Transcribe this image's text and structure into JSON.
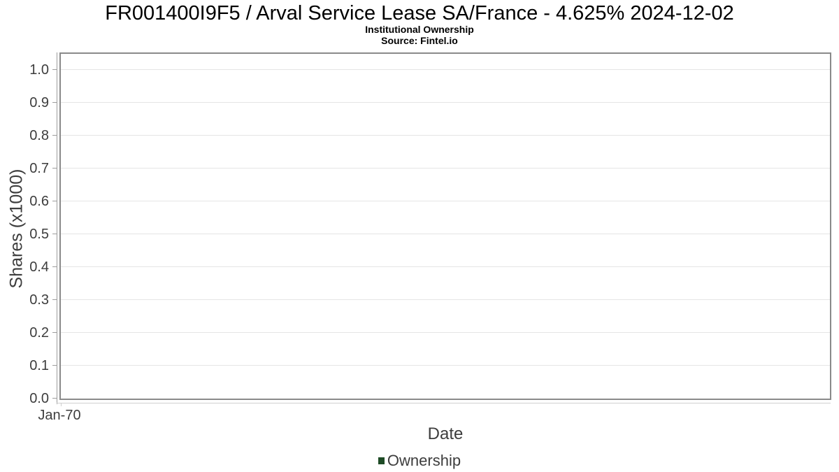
{
  "header": {
    "title": "FR001400I9F5 / Arval Service Lease SA/France - 4.625% 2024-12-02",
    "subtitle": "Institutional Ownership",
    "source": "Source: Fintel.io"
  },
  "chart_data": {
    "type": "line",
    "title": "FR001400I9F5 / Arval Service Lease SA/France - 4.625% 2024-12-02",
    "subtitle": "Institutional Ownership",
    "source": "Source: Fintel.io",
    "xlabel": "Date",
    "ylabel": "Shares (x1000)",
    "ylim": [
      0.0,
      1.05
    ],
    "yticks": [
      0.0,
      0.1,
      0.2,
      0.3,
      0.4,
      0.5,
      0.6,
      0.7,
      0.8,
      0.9,
      1.0
    ],
    "xticks": [
      "Jan-70"
    ],
    "grid": "horizontal-only",
    "legend_position": "bottom-center",
    "series": [
      {
        "name": "Ownership",
        "color": "#1e4b26",
        "x": [],
        "values": []
      }
    ]
  },
  "colors": {
    "frame_border": "#8a8a8a",
    "gridline": "#e5e5e5",
    "y_axis_line": "#9c9c9c",
    "x_axis_line": "#cfcfcf",
    "tick_text": "#3d3d3d",
    "title_text": "#000000",
    "legend_marker": "#1e4b26"
  }
}
